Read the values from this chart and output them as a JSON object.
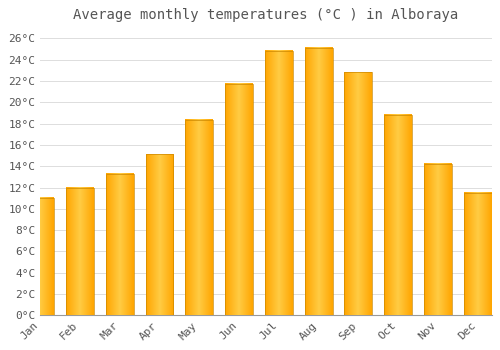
{
  "title": "Average monthly temperatures (°C ) in Alboraya",
  "months": [
    "Jan",
    "Feb",
    "Mar",
    "Apr",
    "May",
    "Jun",
    "Jul",
    "Aug",
    "Sep",
    "Oct",
    "Nov",
    "Dec"
  ],
  "temperatures": [
    11.0,
    12.0,
    13.3,
    15.1,
    18.3,
    21.7,
    24.8,
    25.1,
    22.8,
    18.8,
    14.2,
    11.5
  ],
  "bar_color_center": "#FFCC44",
  "bar_color_edge": "#FFA500",
  "background_color": "#FFFFFF",
  "grid_color": "#DDDDDD",
  "text_color": "#555555",
  "ylim": [
    0,
    27
  ],
  "yticks": [
    0,
    2,
    4,
    6,
    8,
    10,
    12,
    14,
    16,
    18,
    20,
    22,
    24,
    26
  ],
  "title_fontsize": 10,
  "tick_fontsize": 8,
  "bar_width": 0.7
}
